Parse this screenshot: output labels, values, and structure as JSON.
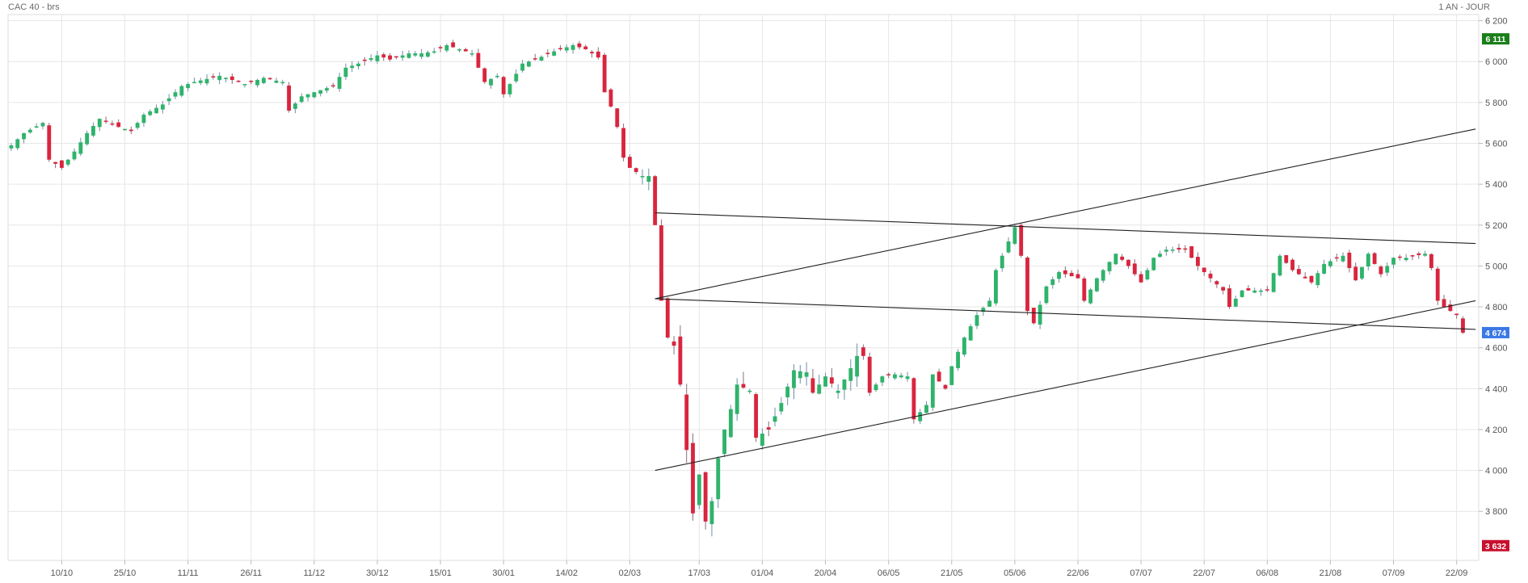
{
  "header": {
    "title": "CAC 40 - brs",
    "period": "1 AN - JOUR"
  },
  "colors": {
    "up": "#2fb36b",
    "down": "#d9253e",
    "grid": "#e6e6e6",
    "axis_text": "#555555",
    "high_tag": "#1a7f1a",
    "last_tag": "#3b78e7",
    "low_tag": "#c8102e",
    "trendline": "#222222"
  },
  "chart_data": {
    "type": "candlestick",
    "ylim": [
      3560,
      6230
    ],
    "y_ticks": [
      3800,
      4000,
      4200,
      4400,
      4600,
      4800,
      5000,
      5200,
      5400,
      5600,
      5800,
      6000,
      6200
    ],
    "y_tick_labels": [
      "3 800",
      "4 000",
      "4 200",
      "4 400",
      "4 600",
      "4 800",
      "5 000",
      "5 200",
      "5 400",
      "5 600",
      "5 800",
      "6 000",
      "6 200"
    ],
    "x_ticks": [
      {
        "idx": 8,
        "label": "10/10"
      },
      {
        "idx": 18,
        "label": "25/10"
      },
      {
        "idx": 28,
        "label": "11/11"
      },
      {
        "idx": 38,
        "label": "26/11"
      },
      {
        "idx": 48,
        "label": "11/12"
      },
      {
        "idx": 58,
        "label": "30/12"
      },
      {
        "idx": 68,
        "label": "15/01"
      },
      {
        "idx": 78,
        "label": "30/01"
      },
      {
        "idx": 88,
        "label": "14/02"
      },
      {
        "idx": 98,
        "label": "02/03"
      },
      {
        "idx": 109,
        "label": "17/03"
      },
      {
        "idx": 119,
        "label": "01/04"
      },
      {
        "idx": 129,
        "label": "20/04"
      },
      {
        "idx": 139,
        "label": "06/05"
      },
      {
        "idx": 149,
        "label": "21/05"
      },
      {
        "idx": 159,
        "label": "05/06"
      },
      {
        "idx": 169,
        "label": "22/06"
      },
      {
        "idx": 179,
        "label": "07/07"
      },
      {
        "idx": 189,
        "label": "22/07"
      },
      {
        "idx": 199,
        "label": "06/08"
      },
      {
        "idx": 209,
        "label": "21/08"
      },
      {
        "idx": 219,
        "label": "07/09"
      },
      {
        "idx": 229,
        "label": "22/09"
      }
    ],
    "n_slots": 233,
    "anchors": [
      [
        0,
        5590
      ],
      [
        2,
        5650
      ],
      [
        5,
        5700
      ],
      [
        6,
        5520
      ],
      [
        8,
        5480
      ],
      [
        10,
        5560
      ],
      [
        12,
        5650
      ],
      [
        14,
        5720
      ],
      [
        17,
        5680
      ],
      [
        19,
        5660
      ],
      [
        21,
        5740
      ],
      [
        24,
        5790
      ],
      [
        27,
        5880
      ],
      [
        29,
        5900
      ],
      [
        33,
        5930
      ],
      [
        35,
        5910
      ],
      [
        37,
        5890
      ],
      [
        40,
        5920
      ],
      [
        43,
        5900
      ],
      [
        44,
        5760
      ],
      [
        46,
        5830
      ],
      [
        48,
        5850
      ],
      [
        51,
        5880
      ],
      [
        53,
        5970
      ],
      [
        55,
        5990
      ],
      [
        58,
        6030
      ],
      [
        60,
        6010
      ],
      [
        63,
        6040
      ],
      [
        65,
        6040
      ],
      [
        67,
        6050
      ],
      [
        69,
        6080
      ],
      [
        71,
        6060
      ],
      [
        73,
        6040
      ],
      [
        75,
        5900
      ],
      [
        77,
        5930
      ],
      [
        78,
        5840
      ],
      [
        81,
        5990
      ],
      [
        83,
        6010
      ],
      [
        86,
        6050
      ],
      [
        89,
        6080
      ],
      [
        91,
        6060
      ],
      [
        93,
        6020
      ],
      [
        94,
        5850
      ],
      [
        95,
        5780
      ],
      [
        96,
        5680
      ],
      [
        97,
        5530
      ],
      [
        98,
        5480
      ],
      [
        100,
        5440
      ],
      [
        101,
        5440
      ],
      [
        102,
        5200
      ],
      [
        103,
        4830
      ],
      [
        104,
        4650
      ],
      [
        105,
        4610
      ],
      [
        106,
        4420
      ],
      [
        107,
        4100
      ],
      [
        108,
        3790
      ],
      [
        109,
        3980
      ],
      [
        110,
        3750
      ],
      [
        111,
        3850
      ],
      [
        112,
        4060
      ],
      [
        113,
        4200
      ],
      [
        114,
        4300
      ],
      [
        115,
        4420
      ],
      [
        117,
        4390
      ],
      [
        118,
        4160
      ],
      [
        120,
        4200
      ],
      [
        122,
        4330
      ],
      [
        124,
        4490
      ],
      [
        126,
        4480
      ],
      [
        127,
        4380
      ],
      [
        129,
        4460
      ],
      [
        131,
        4390
      ],
      [
        133,
        4500
      ],
      [
        134,
        4560
      ],
      [
        135,
        4560
      ],
      [
        136,
        4380
      ],
      [
        138,
        4460
      ],
      [
        140,
        4470
      ],
      [
        142,
        4460
      ],
      [
        143,
        4250
      ],
      [
        145,
        4320
      ],
      [
        146,
        4470
      ],
      [
        148,
        4400
      ],
      [
        149,
        4510
      ],
      [
        151,
        4650
      ],
      [
        153,
        4760
      ],
      [
        155,
        4830
      ],
      [
        156,
        4980
      ],
      [
        158,
        5120
      ],
      [
        159,
        5190
      ],
      [
        160,
        5050
      ],
      [
        161,
        4780
      ],
      [
        162,
        4720
      ],
      [
        164,
        4900
      ],
      [
        166,
        4970
      ],
      [
        169,
        4940
      ],
      [
        170,
        4830
      ],
      [
        172,
        4940
      ],
      [
        175,
        5060
      ],
      [
        177,
        5000
      ],
      [
        179,
        4920
      ],
      [
        181,
        5040
      ],
      [
        183,
        5080
      ],
      [
        186,
        5080
      ],
      [
        188,
        5000
      ],
      [
        190,
        4940
      ],
      [
        192,
        4880
      ],
      [
        193,
        4800
      ],
      [
        195,
        4880
      ],
      [
        197,
        4880
      ],
      [
        199,
        4880
      ],
      [
        201,
        5050
      ],
      [
        203,
        4980
      ],
      [
        206,
        4920
      ],
      [
        208,
        5010
      ],
      [
        211,
        5050
      ],
      [
        213,
        4930
      ],
      [
        215,
        5060
      ],
      [
        217,
        4960
      ],
      [
        219,
        5040
      ],
      [
        221,
        5040
      ],
      [
        224,
        5060
      ],
      [
        225,
        4990
      ],
      [
        226,
        4830
      ],
      [
        227,
        4800
      ],
      [
        229,
        4760
      ],
      [
        230,
        4674
      ]
    ],
    "trendlines": [
      {
        "start": [
          102,
          5260
        ],
        "end": [
          232,
          5110
        ]
      },
      {
        "start": [
          102,
          4840
        ],
        "end": [
          232,
          4690
        ]
      },
      {
        "start": [
          102,
          4840
        ],
        "end": [
          232,
          5670
        ]
      },
      {
        "start": [
          102,
          4000
        ],
        "end": [
          232,
          4830
        ]
      }
    ],
    "price_tags": [
      {
        "label": "6 111",
        "value": 6111,
        "kind": "high"
      },
      {
        "label": "4 674",
        "value": 4674,
        "kind": "last"
      },
      {
        "label": "3 632",
        "value": 3632,
        "kind": "low"
      }
    ]
  }
}
